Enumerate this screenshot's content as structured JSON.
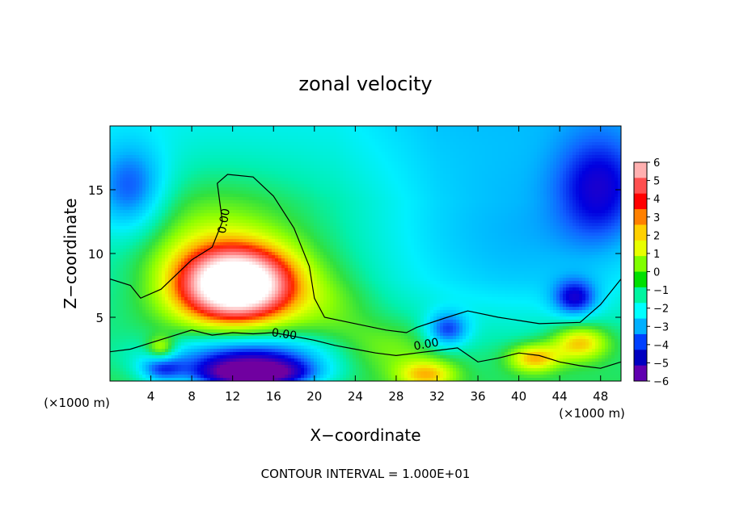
{
  "chart_data": {
    "type": "heatmap",
    "title": "zonal velocity",
    "xlabel": "X−coordinate",
    "ylabel": "Z−coordinate",
    "x_units_left": "(×1000 m)",
    "x_units_right": "(×1000 m)",
    "footer": "CONTOUR INTERVAL = 1.000E+01",
    "xlim": [
      0,
      50
    ],
    "ylim": [
      0,
      20
    ],
    "x_ticks": [
      "4",
      "8",
      "12",
      "16",
      "20",
      "24",
      "28",
      "32",
      "36",
      "40",
      "44",
      "48"
    ],
    "x_tick_values": [
      4,
      8,
      12,
      16,
      20,
      24,
      28,
      32,
      36,
      40,
      44,
      48
    ],
    "y_ticks": [
      "5",
      "10",
      "15"
    ],
    "y_tick_values": [
      5,
      10,
      15
    ],
    "contour_labels": [
      {
        "text": "0.00",
        "x": 11.5,
        "z": 12.5,
        "rotate": -80
      },
      {
        "text": "0.00",
        "x": 17.0,
        "z": 3.4,
        "rotate": 8
      },
      {
        "text": "0.00",
        "x": 31.0,
        "z": 2.6,
        "rotate": -10
      }
    ],
    "colorbar": {
      "labels": [
        "6",
        "5",
        "4",
        "3",
        "2",
        "1",
        "0",
        "−1",
        "−2",
        "−3",
        "−4",
        "−5",
        "−6"
      ],
      "colors": [
        "#ffb0b0",
        "#ff5050",
        "#ff0000",
        "#ff8000",
        "#ffd000",
        "#e8ff00",
        "#80ff00",
        "#00e000",
        "#00f5a0",
        "#00ffff",
        "#00b0ff",
        "#0040ff",
        "#0000c0",
        "#6000b0"
      ]
    },
    "color_scale": {
      "stops": [
        {
          "v": -7,
          "c": "#7000a0"
        },
        {
          "v": -6,
          "c": "#3000c0"
        },
        {
          "v": -5,
          "c": "#0000e0"
        },
        {
          "v": -4,
          "c": "#1060ff"
        },
        {
          "v": -3,
          "c": "#00b8ff"
        },
        {
          "v": -2,
          "c": "#00f0ff"
        },
        {
          "v": -1,
          "c": "#00f0b0"
        },
        {
          "v": 0,
          "c": "#30e040"
        },
        {
          "v": 1,
          "c": "#90ff00"
        },
        {
          "v": 2,
          "c": "#e8ff00"
        },
        {
          "v": 3,
          "c": "#ffb000"
        },
        {
          "v": 4,
          "c": "#ff2000"
        },
        {
          "v": 5,
          "c": "#ff6060"
        },
        {
          "v": 6,
          "c": "#ffb8b8"
        },
        {
          "v": 7,
          "c": "#ffffff"
        }
      ]
    },
    "field_features": [
      {
        "x": 12.5,
        "z": 7.5,
        "v": 8.5,
        "sx": 4.0,
        "sz": 2.0
      },
      {
        "x": 13.0,
        "z": 9.5,
        "v": 2.0,
        "sx": 6.0,
        "sz": 4.0
      },
      {
        "x": 13.5,
        "z": 2.0,
        "v": -4.5,
        "sx": 6.0,
        "sz": 1.2
      },
      {
        "x": 14.0,
        "z": 0.5,
        "v": -7.0,
        "sx": 4.0,
        "sz": 0.8
      },
      {
        "x": 33.0,
        "z": 4.0,
        "v": -3.5,
        "sx": 1.5,
        "sz": 1.0
      },
      {
        "x": 45.5,
        "z": 6.5,
        "v": -3.5,
        "sx": 1.5,
        "sz": 1.0
      },
      {
        "x": 46.0,
        "z": 3.0,
        "v": 3.5,
        "sx": 2.0,
        "sz": 1.0
      },
      {
        "x": 41.5,
        "z": 1.8,
        "v": 3.5,
        "sx": 1.8,
        "sz": 0.8
      },
      {
        "x": 31.0,
        "z": 0.5,
        "v": 3.0,
        "sx": 2.0,
        "sz": 0.8
      },
      {
        "x": 5.0,
        "z": 2.5,
        "v": 3.0,
        "sx": 1.0,
        "sz": 0.7
      },
      {
        "x": 5.0,
        "z": 1.0,
        "v": -3.0,
        "sx": 1.5,
        "sz": 0.8
      },
      {
        "x": 2.0,
        "z": 15.0,
        "v": -3.0,
        "sx": 2.5,
        "sz": 2.5
      },
      {
        "x": 48.0,
        "z": 15.0,
        "v": -3.0,
        "sx": 3.0,
        "sz": 3.0
      },
      {
        "x": 40.0,
        "z": 11.0,
        "v": -1.5,
        "sx": 8.0,
        "sz": 5.0
      },
      {
        "x": 22.0,
        "z": 6.0,
        "v": 1.0,
        "sx": 3.0,
        "sz": 2.0
      },
      {
        "x": 27.0,
        "z": 2.5,
        "v": 1.5,
        "sx": 4.0,
        "sz": 1.5
      }
    ],
    "contour_zero_path": [
      [
        0,
        8.0
      ],
      [
        2,
        7.5
      ],
      [
        3,
        6.5
      ],
      [
        5,
        7.2
      ],
      [
        8,
        9.5
      ],
      [
        10,
        10.5
      ],
      [
        11,
        12.5
      ],
      [
        10.5,
        15.5
      ],
      [
        11.5,
        16.2
      ],
      [
        14,
        16.0
      ],
      [
        16,
        14.5
      ],
      [
        18,
        12.0
      ],
      [
        19.5,
        9.0
      ],
      [
        20,
        6.5
      ],
      [
        21,
        5.0
      ],
      [
        24,
        4.5
      ],
      [
        27,
        4.0
      ],
      [
        29,
        3.8
      ],
      [
        30,
        4.2
      ],
      [
        33,
        5.0
      ],
      [
        35,
        5.5
      ],
      [
        38,
        5.0
      ],
      [
        42,
        4.5
      ],
      [
        46,
        4.6
      ],
      [
        48,
        6.0
      ],
      [
        50,
        8.0
      ]
    ],
    "contour_lower_path": [
      [
        0,
        2.3
      ],
      [
        2,
        2.5
      ],
      [
        4,
        3.0
      ],
      [
        6,
        3.5
      ],
      [
        8,
        4.0
      ],
      [
        10,
        3.6
      ],
      [
        12,
        3.8
      ],
      [
        14,
        3.7
      ],
      [
        16,
        3.8
      ],
      [
        18,
        3.5
      ],
      [
        20,
        3.2
      ],
      [
        22,
        2.8
      ],
      [
        24,
        2.5
      ],
      [
        26,
        2.2
      ],
      [
        28,
        2.0
      ],
      [
        30,
        2.2
      ],
      [
        32,
        2.4
      ],
      [
        34,
        2.6
      ],
      [
        36,
        1.5
      ],
      [
        38,
        1.8
      ],
      [
        40,
        2.2
      ],
      [
        42,
        2.0
      ],
      [
        44,
        1.5
      ],
      [
        46,
        1.2
      ],
      [
        48,
        1.0
      ],
      [
        50,
        1.5
      ]
    ]
  }
}
